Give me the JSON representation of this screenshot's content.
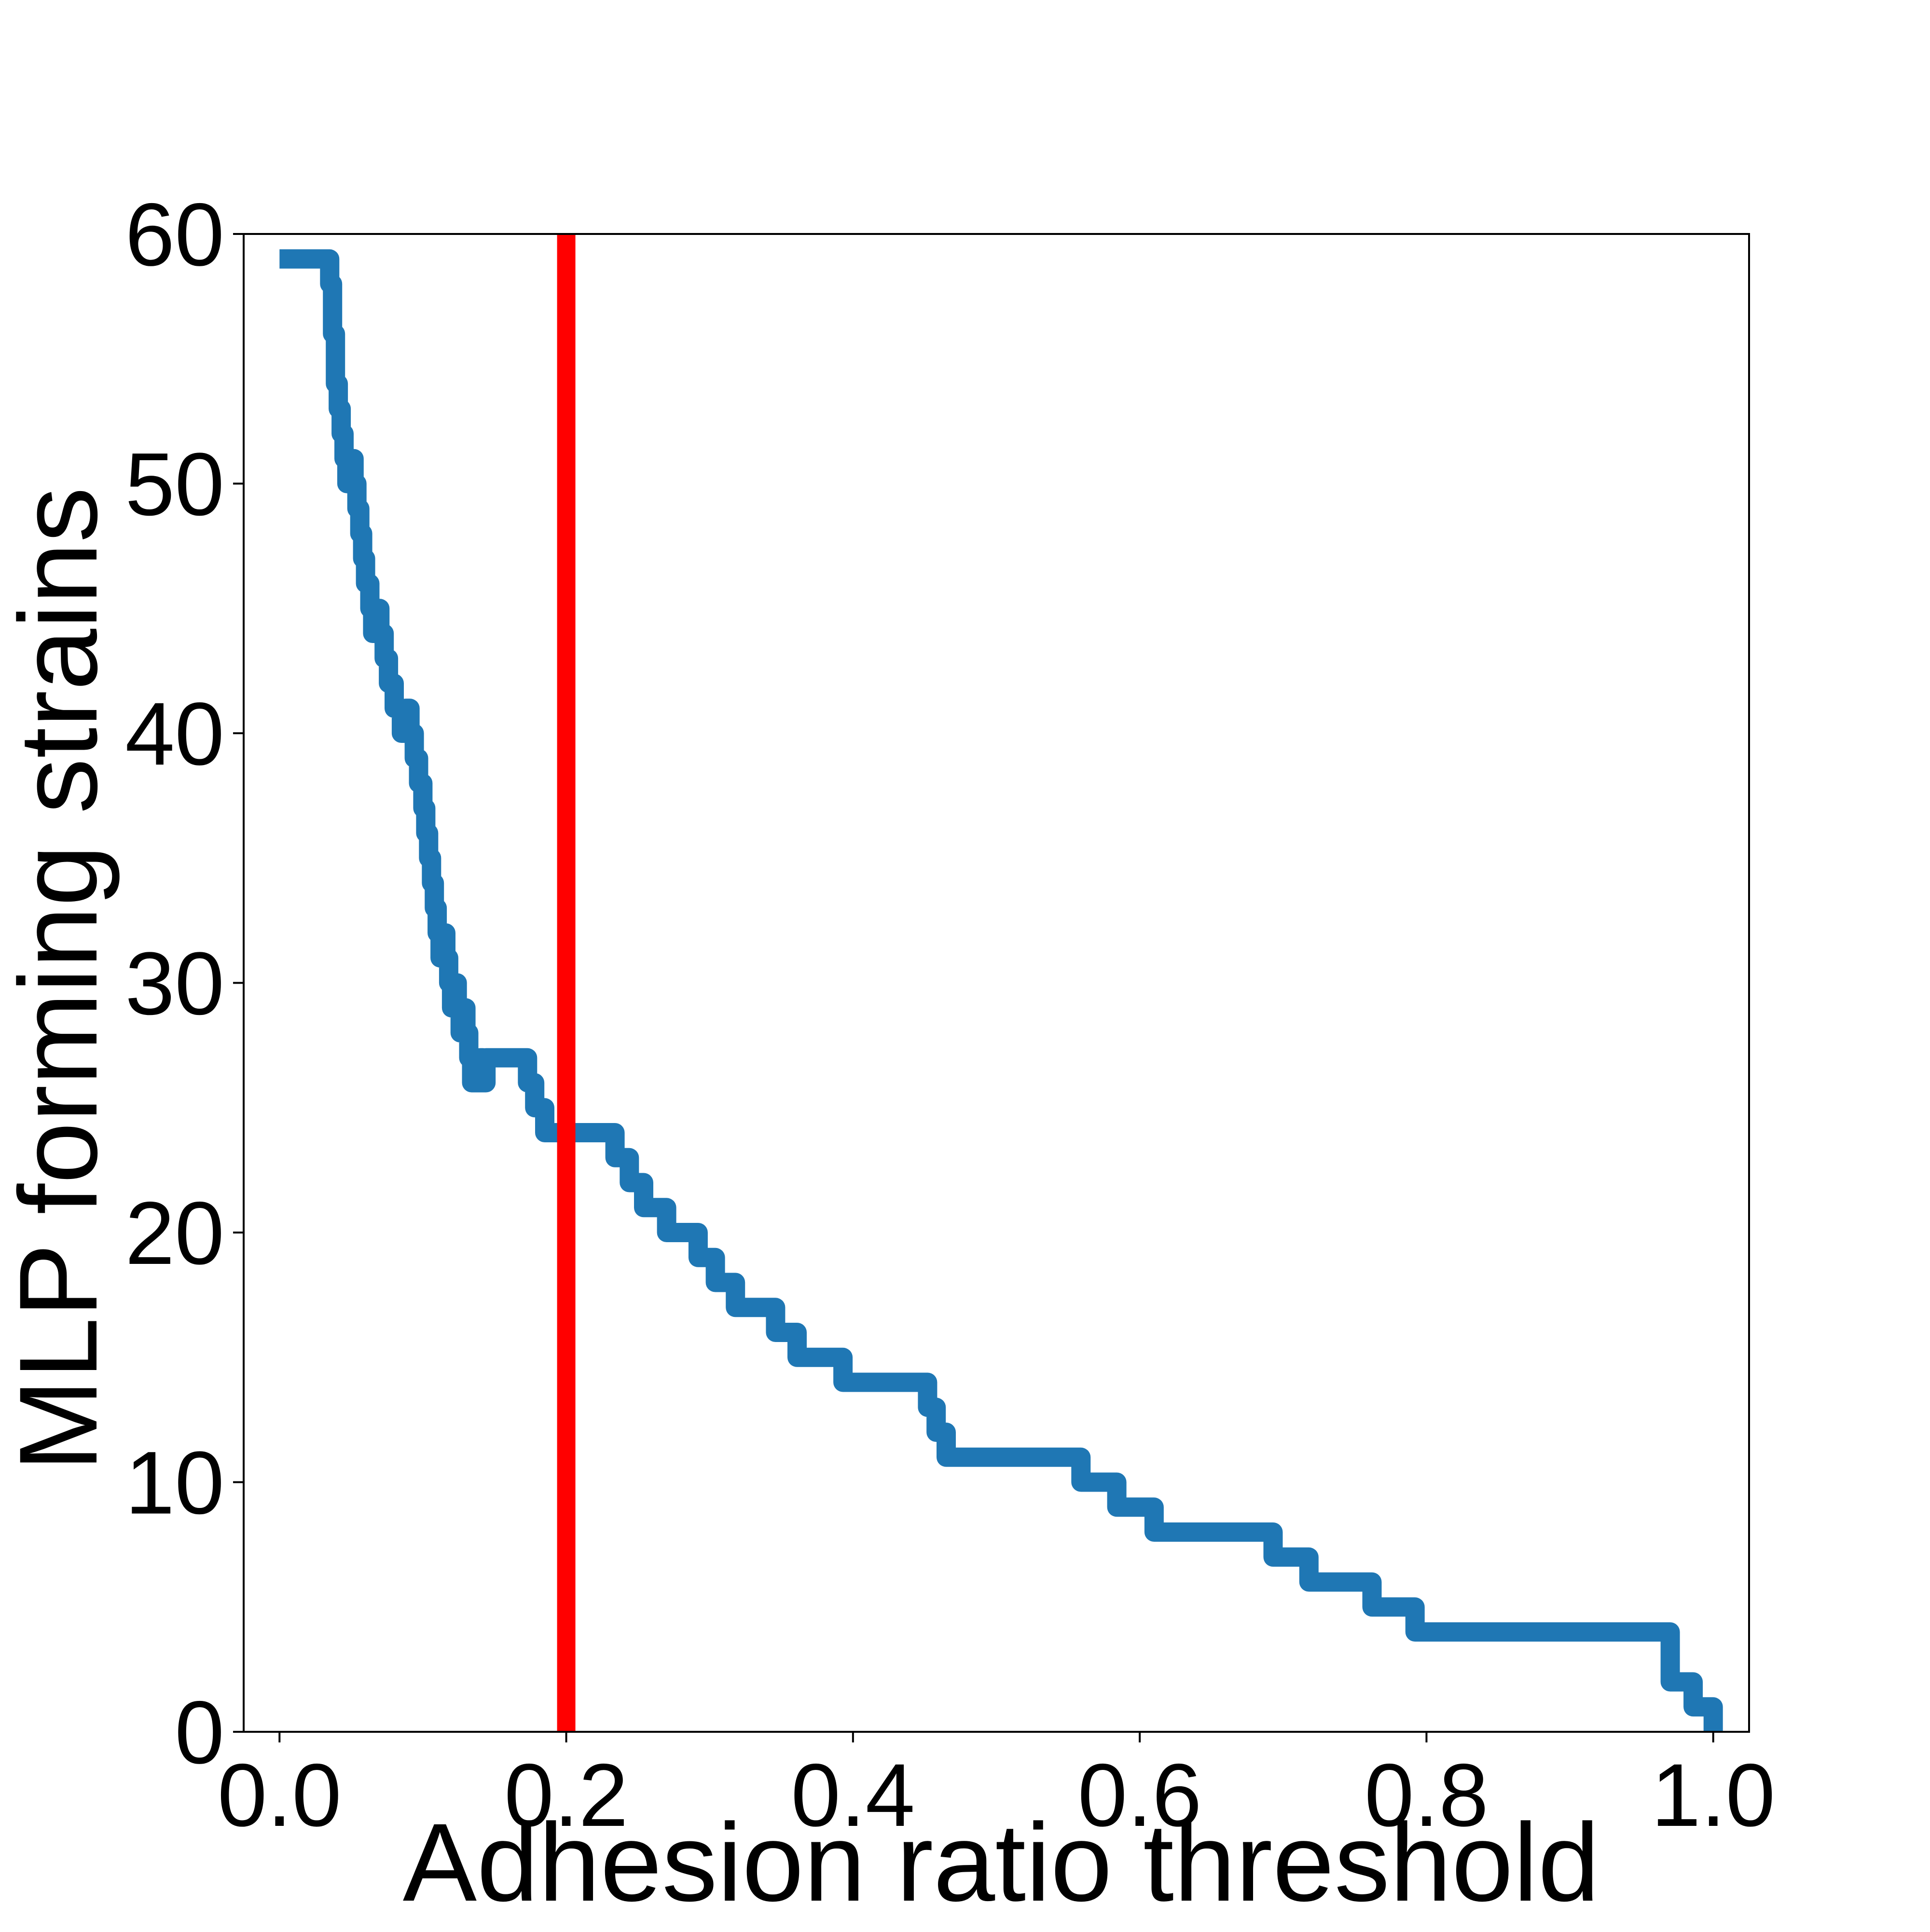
{
  "chart_data": {
    "type": "line",
    "title": "",
    "xlabel": "Adhesion ratio threshold",
    "ylabel": "MLP forming strains",
    "xlim": [
      -0.025,
      1.025
    ],
    "ylim": [
      0,
      60
    ],
    "x_ticks": [
      "0.0",
      "0.2",
      "0.4",
      "0.6",
      "0.8",
      "1.0"
    ],
    "x_tick_values": [
      0.0,
      0.2,
      0.4,
      0.6,
      0.8,
      1.0
    ],
    "y_ticks": [
      "0",
      "10",
      "20",
      "30",
      "40",
      "50",
      "60"
    ],
    "y_tick_values": [
      0,
      10,
      20,
      30,
      40,
      50,
      60
    ],
    "grid": false,
    "legend": "none",
    "colors": {
      "series": "#1f77b4",
      "threshold": "#ff0000"
    },
    "threshold_line": {
      "x": 0.2
    },
    "series": [
      {
        "step": "post",
        "x": [
          0.0,
          0.035,
          0.037,
          0.039,
          0.041,
          0.043,
          0.045,
          0.047,
          0.05,
          0.052,
          0.054,
          0.056,
          0.058,
          0.06,
          0.063,
          0.065,
          0.068,
          0.07,
          0.073,
          0.076,
          0.08,
          0.085,
          0.088,
          0.091,
          0.094,
          0.097,
          0.1,
          0.102,
          0.104,
          0.106,
          0.108,
          0.11,
          0.112,
          0.114,
          0.116,
          0.118,
          0.12,
          0.122,
          0.124,
          0.126,
          0.128,
          0.13,
          0.132,
          0.134,
          0.136,
          0.138,
          0.14,
          0.142,
          0.144,
          0.173,
          0.178,
          0.185,
          0.194,
          0.2,
          0.234,
          0.244,
          0.254,
          0.27,
          0.292,
          0.304,
          0.318,
          0.346,
          0.361,
          0.393,
          0.452,
          0.458,
          0.465,
          0.559,
          0.584,
          0.61,
          0.693,
          0.718,
          0.762,
          0.792,
          0.97,
          0.986,
          1.0
        ],
        "y": [
          59,
          58,
          56,
          54,
          53,
          52,
          51,
          50,
          51,
          50,
          49,
          48,
          47,
          46,
          45,
          44,
          45,
          44,
          43,
          42,
          41,
          40,
          41,
          40,
          39,
          38,
          37,
          36,
          35,
          34,
          33,
          32,
          31,
          32,
          31,
          30,
          29,
          30,
          29,
          28,
          29,
          28,
          27,
          26,
          27,
          26,
          27,
          26,
          27,
          26,
          25,
          24,
          24,
          24,
          23,
          22,
          21,
          20,
          19,
          18,
          17,
          16,
          15,
          14,
          13,
          12,
          11,
          10,
          9,
          8,
          7,
          6,
          5,
          4,
          2,
          1,
          0
        ]
      }
    ]
  }
}
